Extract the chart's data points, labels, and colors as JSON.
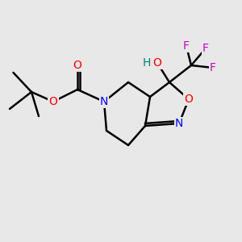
{
  "bg_color": "#e8e8e8",
  "bond_color": "#000000",
  "bond_width": 1.8,
  "atom_colors": {
    "O": "#ff0000",
    "N": "#0000ff",
    "F": "#cc00cc",
    "H": "#008080",
    "C": "#000000"
  },
  "font_size": 10,
  "figsize": [
    3.0,
    3.0
  ],
  "dpi": 100
}
